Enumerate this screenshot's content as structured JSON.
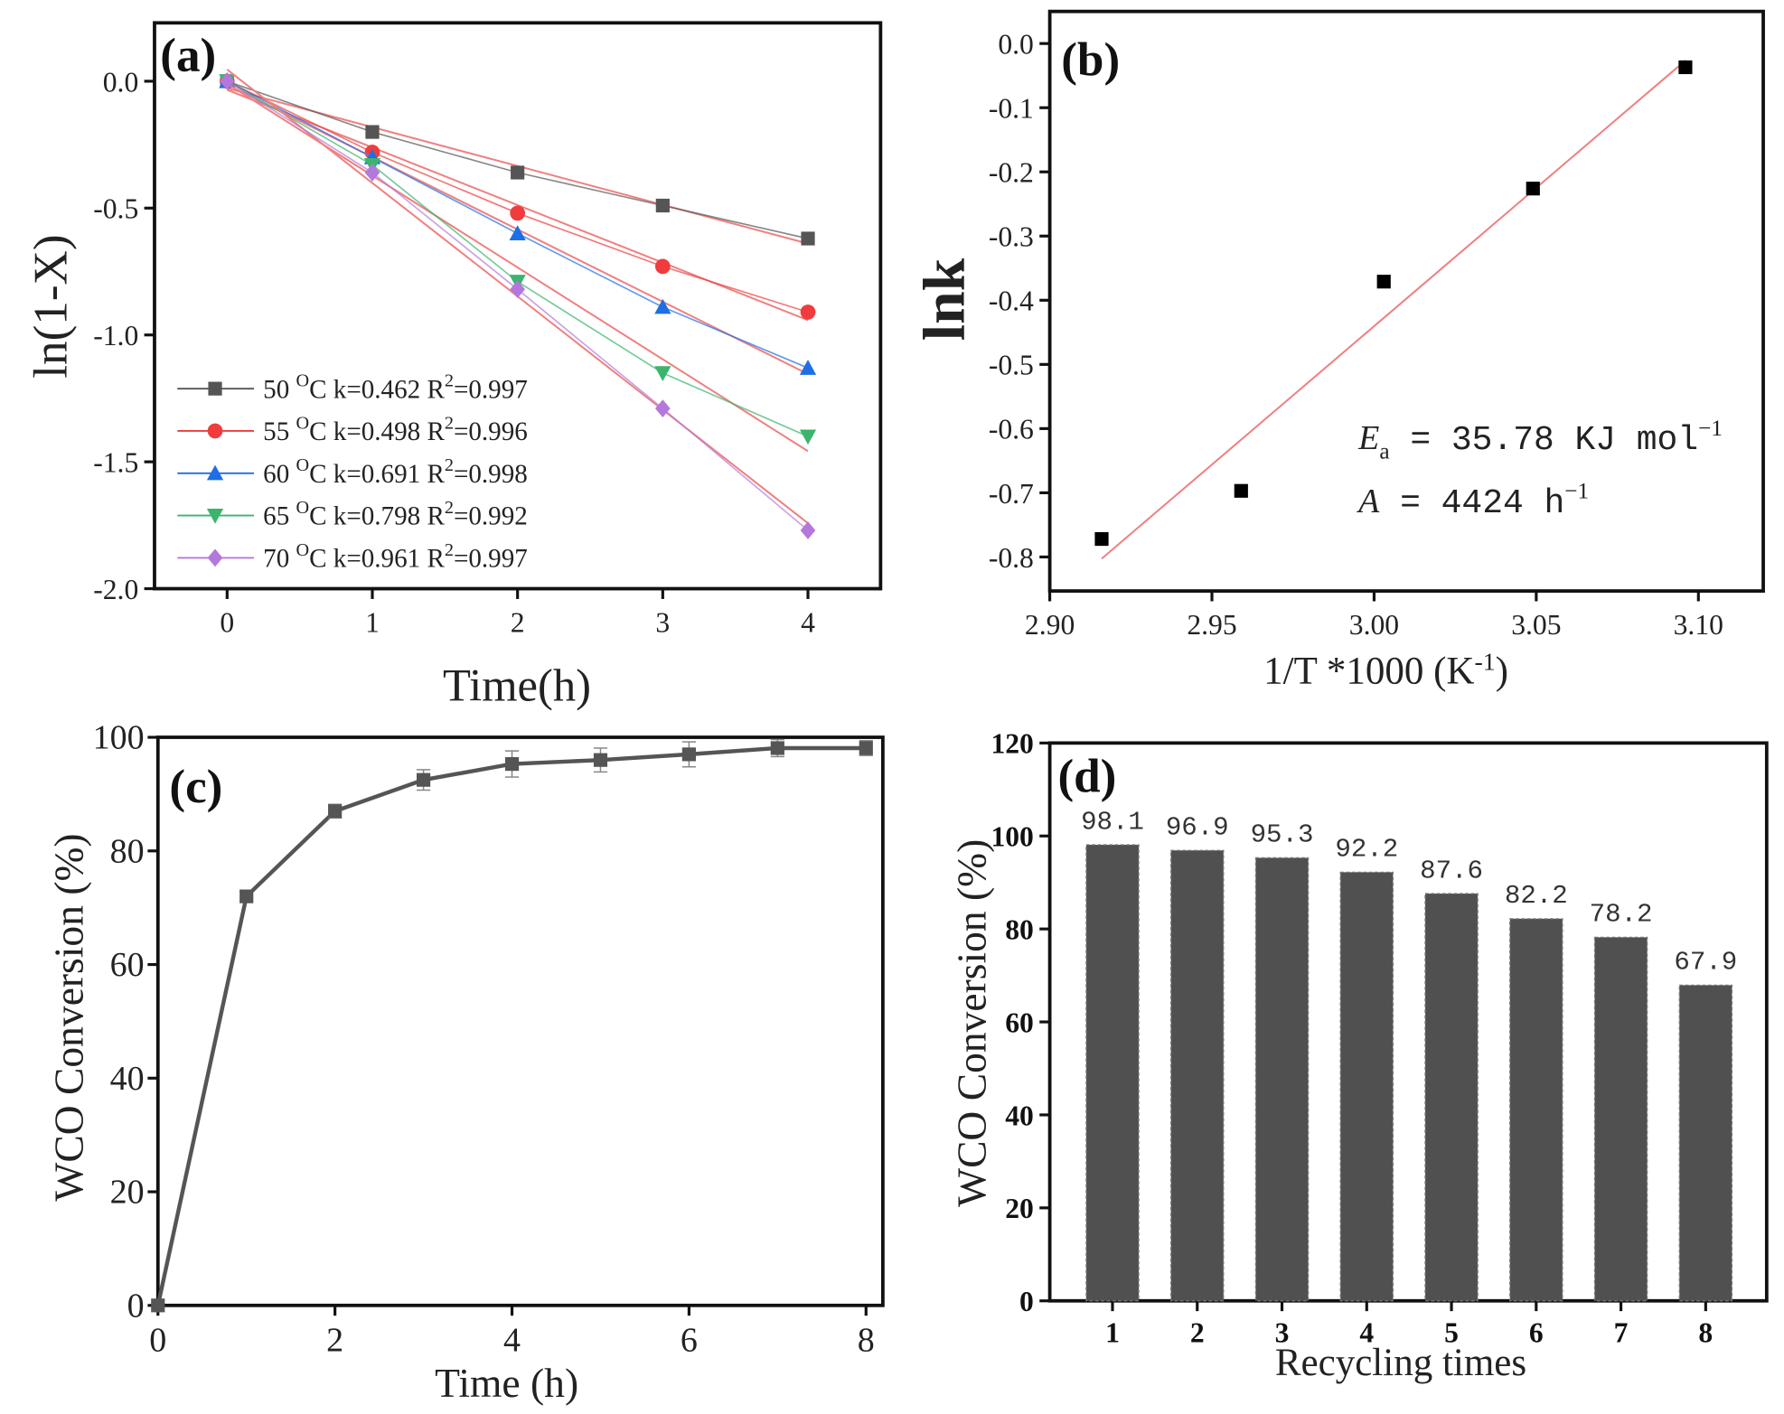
{
  "chart_data": [
    {
      "panel": "(a)",
      "type": "line",
      "xlabel": "Time(h)",
      "ylabel": "ln(1-X)",
      "xlim": [
        -0.5,
        4.5
      ],
      "ylim": [
        -2.0,
        0.23
      ],
      "xticks": [
        "0",
        "1",
        "2",
        "3",
        "4"
      ],
      "yticks": [
        "0.0",
        "-0.5",
        "-1.0",
        "-1.5",
        "-2.0"
      ],
      "x": [
        0,
        1,
        2,
        3,
        4
      ],
      "fit_line_color": "#f08080",
      "legend_position": "bottom-left",
      "series": [
        {
          "temp": "50",
          "unit_sup": "O",
          "unit": "C",
          "k": "k=0.462",
          "r2": "=0.997",
          "marker": "square",
          "color": "#555555",
          "values": [
            0,
            -0.2,
            -0.36,
            -0.49,
            -0.62
          ]
        },
        {
          "temp": "55",
          "unit_sup": "O",
          "unit": "C",
          "k": "k=0.498",
          "r2": "=0.996",
          "marker": "circle",
          "color": "#f03c3c",
          "values": [
            0,
            -0.28,
            -0.52,
            -0.73,
            -0.91
          ]
        },
        {
          "temp": "60",
          "unit_sup": "O",
          "unit": "C",
          "k": "k=0.691",
          "r2": "=0.998",
          "marker": "triangle-up",
          "color": "#1e6ee6",
          "values": [
            0,
            -0.3,
            -0.6,
            -0.89,
            -1.13
          ]
        },
        {
          "temp": "65",
          "unit_sup": "O",
          "unit": "C",
          "k": "k=0.798",
          "r2": "=0.992",
          "marker": "triangle-down",
          "color": "#3cb46e",
          "values": [
            0,
            -0.33,
            -0.79,
            -1.15,
            -1.4
          ]
        },
        {
          "temp": "70",
          "unit_sup": "O",
          "unit": "C",
          "k": "k=0.961",
          "r2": "=0.997",
          "marker": "diamond",
          "color": "#b478dc",
          "values": [
            0,
            -0.36,
            -0.82,
            -1.29,
            -1.77
          ]
        }
      ]
    },
    {
      "panel": "(b)",
      "type": "scatter",
      "xlabel": "1/T *1000 (K",
      "xlabel_sup": "-1",
      "xlabel_end": ")",
      "ylabel": "lnk",
      "xlim": [
        2.9,
        3.12
      ],
      "ylim": [
        -0.853,
        0.05
      ],
      "xticks": [
        "2.90",
        "2.95",
        "3.00",
        "3.05",
        "3.10"
      ],
      "yticks": [
        "0.0",
        "-0.1",
        "-0.2",
        "-0.3",
        "-0.4",
        "-0.5",
        "-0.6",
        "-0.7",
        "-0.8"
      ],
      "x": [
        2.916,
        2.959,
        3.003,
        3.049,
        3.096
      ],
      "values": [
        -0.772,
        -0.697,
        -0.371,
        -0.226,
        -0.037
      ],
      "marker_color": "#000000",
      "fit_line_color": "#f08080",
      "annotations": {
        "ea_symbol": "E",
        "ea_sub": "a",
        "ea_text": " = 35.78 KJ mol",
        "ea_sup": "−1",
        "a_symbol": "A",
        "a_text": " = 4424 h",
        "a_sup": "−1"
      }
    },
    {
      "panel": "(c)",
      "type": "line",
      "xlabel": "Time (h)",
      "ylabel": "WCO Conversion (%)",
      "xlim": [
        0,
        8.19
      ],
      "ylim": [
        0,
        100
      ],
      "xticks": [
        "0",
        "2",
        "4",
        "6",
        "8"
      ],
      "yticks": [
        "0",
        "20",
        "40",
        "60",
        "80",
        "100"
      ],
      "x": [
        0,
        1,
        2,
        3,
        4,
        5,
        6,
        7,
        8
      ],
      "values": [
        0,
        72,
        87,
        92.5,
        95.3,
        96,
        97,
        98.1,
        98.1
      ],
      "errors": [
        0,
        0.8,
        1.2,
        1.8,
        2.3,
        2.1,
        2.2,
        1.5,
        1.3
      ],
      "color": "#555555"
    },
    {
      "panel": "(d)",
      "type": "bar",
      "xlabel": "Recycling times",
      "ylabel": "WCO Conversion (%)",
      "xlim": [
        0.26,
        8.72
      ],
      "ylim": [
        0,
        120
      ],
      "categories": [
        "1",
        "2",
        "3",
        "4",
        "5",
        "6",
        "7",
        "8"
      ],
      "yticks": [
        "0",
        "20",
        "40",
        "60",
        "80",
        "100",
        "120"
      ],
      "values": [
        98.1,
        96.9,
        95.3,
        92.2,
        87.6,
        82.2,
        78.2,
        67.9
      ],
      "data_labels": [
        "98.1",
        "96.9",
        "95.3",
        "92.2",
        "87.6",
        "82.2",
        "78.2",
        "67.9"
      ],
      "bar_color": "#505050"
    }
  ]
}
